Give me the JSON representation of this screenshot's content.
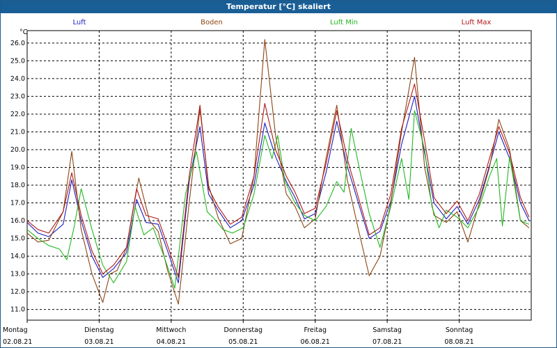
{
  "window": {
    "title": "Temperatur [°C] skaliert"
  },
  "chart_data": {
    "type": "line",
    "title": "Temperatur [°C] skaliert",
    "ylabel": "°C",
    "ylim": [
      10.4,
      26.7
    ],
    "xlim": [
      0,
      7
    ],
    "grid": true,
    "legend": "top",
    "y_ticks": [
      "11.0",
      "12.0",
      "13.0",
      "14.0",
      "15.0",
      "16.0",
      "17.0",
      "18.0",
      "19.0",
      "20.0",
      "21.0",
      "22.0",
      "23.0",
      "24.0",
      "25.0",
      "26.0"
    ],
    "x_ticks": [
      {
        "day": "Montag",
        "date": "02.08.21"
      },
      {
        "day": "Dienstag",
        "date": "03.08.21"
      },
      {
        "day": "Mittwoch",
        "date": "04.08.21"
      },
      {
        "day": "Donnerstag",
        "date": "05.08.21"
      },
      {
        "day": "Freitag",
        "date": "06.08.21"
      },
      {
        "day": "Samstag",
        "date": "07.08.21"
      },
      {
        "day": "Sonntag",
        "date": "08.08.21"
      }
    ],
    "series": [
      {
        "name": "Luft",
        "color": "#1c1cc0",
        "x": [
          0,
          0.15,
          0.3,
          0.5,
          0.62,
          0.75,
          0.9,
          1.05,
          1.2,
          1.38,
          1.52,
          1.65,
          1.82,
          1.95,
          2.1,
          2.25,
          2.4,
          2.52,
          2.65,
          2.82,
          2.98,
          3.15,
          3.3,
          3.45,
          3.6,
          3.72,
          3.85,
          4.0,
          4.15,
          4.3,
          4.45,
          4.6,
          4.75,
          4.9,
          5.05,
          5.2,
          5.38,
          5.52,
          5.65,
          5.82,
          5.97,
          6.12,
          6.28,
          6.42,
          6.55,
          6.7,
          6.85,
          6.97
        ],
        "y": [
          15.9,
          15.3,
          15.1,
          15.8,
          18.3,
          16.0,
          14.0,
          12.8,
          13.3,
          14.2,
          17.2,
          15.9,
          15.8,
          14.3,
          12.5,
          18.2,
          21.3,
          17.5,
          16.6,
          15.6,
          16.0,
          18.0,
          21.5,
          19.6,
          18.2,
          17.3,
          16.1,
          16.4,
          18.7,
          21.6,
          19.0,
          17.0,
          15.0,
          15.4,
          17.1,
          20.3,
          23.0,
          19.8,
          17.0,
          16.1,
          16.8,
          15.8,
          17.2,
          19.1,
          21.0,
          19.5,
          17.0,
          16.0
        ]
      },
      {
        "name": "Boden",
        "color": "#8b4513",
        "x": [
          0,
          0.15,
          0.3,
          0.5,
          0.62,
          0.75,
          0.9,
          1.05,
          1.15,
          1.25,
          1.38,
          1.55,
          1.7,
          1.82,
          1.95,
          2.1,
          2.25,
          2.4,
          2.52,
          2.65,
          2.82,
          2.98,
          3.15,
          3.3,
          3.45,
          3.6,
          3.72,
          3.85,
          4.0,
          4.15,
          4.3,
          4.45,
          4.6,
          4.75,
          4.9,
          5.05,
          5.2,
          5.38,
          5.52,
          5.65,
          5.82,
          5.97,
          6.12,
          6.28,
          6.42,
          6.55,
          6.7,
          6.85,
          6.97
        ],
        "y": [
          15.3,
          14.8,
          14.9,
          16.5,
          19.9,
          15.5,
          13.0,
          11.4,
          13.0,
          13.2,
          14.5,
          18.4,
          16.0,
          15.4,
          13.2,
          11.3,
          17.0,
          22.3,
          18.0,
          16.2,
          14.7,
          15.0,
          18.5,
          26.2,
          20.8,
          17.5,
          16.8,
          15.6,
          16.1,
          19.5,
          22.5,
          18.2,
          15.5,
          12.9,
          14.0,
          17.0,
          21.0,
          25.2,
          19.0,
          16.3,
          15.9,
          16.5,
          14.8,
          17.0,
          19.0,
          21.7,
          20.0,
          16.0,
          15.6
        ]
      },
      {
        "name": "Luft Min",
        "color": "#22b822",
        "x": [
          0,
          0.15,
          0.3,
          0.45,
          0.55,
          0.65,
          0.75,
          0.9,
          1.05,
          1.2,
          1.38,
          1.5,
          1.62,
          1.75,
          1.9,
          2.05,
          2.2,
          2.35,
          2.5,
          2.6,
          2.72,
          2.85,
          3.0,
          3.15,
          3.3,
          3.4,
          3.48,
          3.58,
          3.72,
          3.85,
          4.0,
          4.15,
          4.3,
          4.4,
          4.5,
          4.6,
          4.75,
          4.9,
          5.05,
          5.2,
          5.3,
          5.38,
          5.52,
          5.62,
          5.72,
          5.82,
          5.97,
          6.12,
          6.28,
          6.42,
          6.52,
          6.6,
          6.7,
          6.85,
          6.97
        ],
        "y": [
          15.5,
          15.0,
          14.6,
          14.4,
          13.8,
          15.6,
          17.8,
          15.5,
          13.5,
          12.5,
          13.7,
          16.8,
          15.2,
          15.6,
          14.0,
          12.2,
          17.5,
          19.9,
          16.5,
          16.1,
          15.5,
          15.3,
          15.6,
          17.5,
          20.8,
          19.5,
          20.8,
          18.2,
          17.0,
          16.3,
          16.0,
          16.8,
          18.2,
          17.6,
          21.2,
          19.2,
          16.4,
          14.5,
          16.8,
          19.5,
          17.2,
          22.2,
          20.0,
          16.8,
          15.6,
          16.6,
          16.2,
          15.6,
          16.8,
          18.5,
          19.5,
          15.7,
          19.6,
          16.0,
          15.8
        ]
      },
      {
        "name": "Luft Max",
        "color": "#b01818",
        "x": [
          0,
          0.15,
          0.3,
          0.5,
          0.62,
          0.75,
          0.9,
          1.05,
          1.2,
          1.38,
          1.52,
          1.65,
          1.82,
          1.95,
          2.1,
          2.25,
          2.4,
          2.52,
          2.65,
          2.82,
          2.98,
          3.15,
          3.3,
          3.45,
          3.6,
          3.72,
          3.85,
          4.0,
          4.15,
          4.3,
          4.45,
          4.6,
          4.75,
          4.9,
          5.05,
          5.2,
          5.38,
          5.52,
          5.65,
          5.82,
          5.97,
          6.12,
          6.28,
          6.42,
          6.55,
          6.7,
          6.85,
          6.97
        ],
        "y": [
          16.0,
          15.5,
          15.3,
          16.5,
          18.7,
          16.3,
          14.3,
          13.0,
          13.5,
          14.5,
          17.8,
          16.3,
          16.1,
          14.6,
          12.8,
          18.5,
          22.5,
          17.8,
          16.8,
          15.8,
          16.2,
          18.5,
          22.6,
          20.0,
          18.5,
          17.6,
          16.4,
          16.7,
          19.2,
          22.2,
          19.4,
          17.3,
          15.2,
          15.6,
          17.5,
          21.2,
          23.7,
          20.5,
          17.3,
          16.4,
          17.1,
          16.0,
          17.5,
          19.5,
          21.3,
          19.8,
          17.3,
          16.2
        ]
      }
    ]
  }
}
